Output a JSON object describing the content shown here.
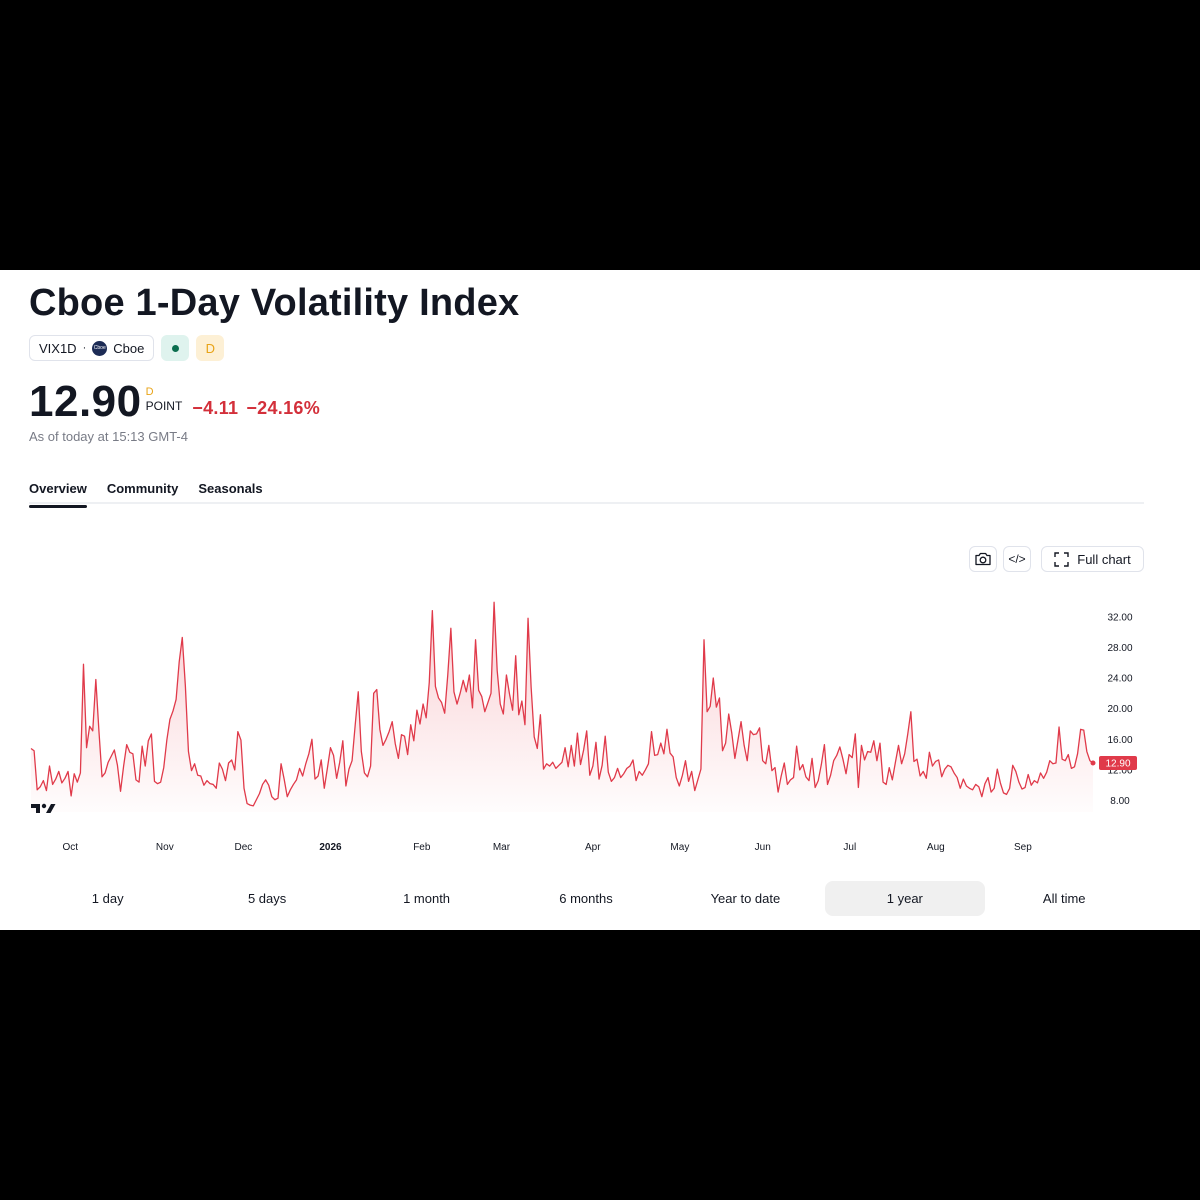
{
  "header": {
    "title": "Cboe 1-Day Volatility Index",
    "symbol": "VIX1D",
    "symbol_separator": "·",
    "exchange": "Cboe",
    "exchange_logo_text": "Cboe",
    "delay_badge": "D"
  },
  "quote": {
    "price": "12.90",
    "price_superscript": "D",
    "unit": "POINT",
    "change": "−4.11",
    "change_percent": "−24.16%",
    "as_of": "As of today at 15:13 GMT-4",
    "change_color": "#d32f3a"
  },
  "tabs": [
    {
      "label": "Overview",
      "active": true
    },
    {
      "label": "Community",
      "active": false
    },
    {
      "label": "Seasonals",
      "active": false
    }
  ],
  "toolbar": {
    "camera_icon": "camera-icon",
    "embed_label": "</>",
    "full_chart_label": "Full chart"
  },
  "ranges": [
    {
      "label": "1 day",
      "active": false
    },
    {
      "label": "5 days",
      "active": false
    },
    {
      "label": "1 month",
      "active": false
    },
    {
      "label": "6 months",
      "active": false
    },
    {
      "label": "Year to date",
      "active": false
    },
    {
      "label": "1 year",
      "active": true
    },
    {
      "label": "All time",
      "active": false
    }
  ],
  "chart_data": {
    "type": "area",
    "title": "",
    "xlabel": "",
    "ylabel": "",
    "line_color": "#e03a4a",
    "last_value_label": "12.90",
    "ylim": [
      6.5,
      35.5
    ],
    "y_ticks": [
      "8.00",
      "12.00",
      "16.00",
      "20.00",
      "24.00",
      "28.00",
      "32.00"
    ],
    "x_ticks": [
      {
        "label": "Oct",
        "t": 0.037
      },
      {
        "label": "Nov",
        "t": 0.126
      },
      {
        "label": "Dec",
        "t": 0.2
      },
      {
        "label": "2026",
        "t": 0.282,
        "bold": true
      },
      {
        "label": "Feb",
        "t": 0.368
      },
      {
        "label": "Mar",
        "t": 0.443
      },
      {
        "label": "Apr",
        "t": 0.529
      },
      {
        "label": "May",
        "t": 0.611
      },
      {
        "label": "Jun",
        "t": 0.689
      },
      {
        "label": "Jul",
        "t": 0.771
      },
      {
        "label": "Aug",
        "t": 0.852
      },
      {
        "label": "Sep",
        "t": 0.934
      }
    ],
    "series": [
      {
        "values": [
          14.8,
          14.5,
          9.4,
          9.8,
          10.6,
          9.3,
          12.5,
          10.1,
          10.8,
          11.8,
          10.3,
          10.9,
          11.8,
          8.6,
          11.5,
          10.4,
          11.6,
          25.8,
          14.9,
          17.7,
          17.1,
          23.8,
          17.1,
          11.1,
          11.6,
          13.0,
          13.8,
          14.6,
          12.6,
          9.2,
          12.5,
          15.3,
          14.3,
          14.1,
          10.7,
          10.4,
          15.1,
          12.5,
          15.8,
          16.7,
          10.5,
          10.2,
          10.4,
          12.3,
          15.9,
          18.6,
          19.7,
          21.2,
          26.1,
          29.3,
          23.0,
          14.4,
          11.9,
          12.8,
          11.3,
          11.2,
          10.0,
          10.6,
          10.2,
          10.1,
          9.6,
          12.9,
          12.1,
          10.6,
          12.9,
          13.3,
          12.0,
          17.0,
          15.9,
          9.6,
          7.6,
          7.4,
          7.3,
          8.1,
          8.9,
          10.1,
          10.7,
          10.0,
          8.5,
          8.1,
          8.3,
          12.8,
          10.8,
          8.5,
          9.4,
          10.1,
          10.7,
          12.2,
          11.2,
          12.8,
          14.1,
          16.0,
          10.8,
          11.2,
          13.3,
          9.6,
          12.2,
          14.9,
          13.9,
          10.9,
          13.0,
          15.8,
          9.9,
          12.1,
          13.2,
          17.8,
          22.2,
          14.4,
          11.6,
          11.1,
          12.5,
          22.0,
          22.5,
          17.3,
          15.2,
          16.0,
          17.0,
          18.3,
          15.4,
          13.5,
          16.6,
          16.4,
          14.0,
          17.9,
          15.8,
          19.8,
          18.0,
          20.6,
          18.8,
          23.4,
          32.8,
          22.9,
          21.4,
          20.8,
          19.4,
          24.4,
          30.5,
          22.2,
          20.6,
          22.0,
          23.7,
          22.2,
          24.4,
          20.1,
          29.0,
          22.4,
          21.6,
          19.6,
          20.8,
          22.0,
          33.9,
          25.0,
          20.6,
          19.3,
          24.4,
          21.9,
          19.8,
          26.9,
          19.2,
          21.0,
          17.9,
          31.8,
          22.8,
          16.3,
          14.8,
          19.2,
          12.1,
          12.8,
          12.5,
          13.0,
          12.2,
          12.6,
          13.0,
          14.9,
          12.4,
          15.2,
          12.5,
          16.8,
          12.7,
          14.6,
          17.1,
          11.3,
          12.5,
          15.6,
          10.8,
          12.6,
          16.4,
          11.7,
          10.5,
          11.0,
          12.2,
          11.0,
          11.5,
          12.2,
          12.5,
          13.3,
          10.6,
          11.8,
          11.3,
          12.0,
          12.8,
          17.0,
          13.9,
          14.0,
          15.5,
          14.1,
          17.3,
          14.2,
          13.7,
          11.0,
          9.9,
          11.3,
          13.2,
          10.5,
          11.8,
          9.3,
          10.7,
          12.1,
          29.0,
          19.6,
          20.3,
          24.0,
          20.2,
          21.4,
          14.5,
          15.5,
          19.3,
          16.8,
          13.5,
          15.9,
          18.3,
          15.2,
          13.2,
          17.1,
          16.6,
          16.7,
          17.5,
          13.2,
          12.8,
          15.2,
          11.9,
          12.3,
          9.1,
          11.2,
          12.9,
          10.1,
          10.7,
          11.0,
          15.1,
          12.0,
          12.7,
          11.1,
          10.6,
          13.5,
          9.7,
          10.6,
          12.7,
          15.3,
          10.1,
          11.3,
          13.2,
          13.9,
          15.0,
          13.4,
          11.5,
          14.0,
          13.6,
          16.7,
          9.7,
          15.2,
          13.3,
          14.4,
          14.3,
          15.8,
          13.2,
          15.5,
          10.4,
          10.1,
          12.3,
          10.7,
          13.0,
          15.2,
          12.8,
          14.1,
          16.7,
          19.6,
          13.1,
          13.4,
          11.2,
          11.8,
          10.9,
          14.3,
          12.5,
          13.1,
          13.3,
          11.1,
          12.1,
          12.6,
          12.4,
          11.6,
          11.0,
          9.6,
          10.8,
          9.9,
          9.6,
          9.4,
          10.1,
          9.8,
          8.5,
          10.2,
          11.0,
          9.1,
          9.6,
          12.1,
          10.3,
          9.0,
          8.8,
          9.6,
          12.6,
          11.8,
          10.4,
          9.5,
          9.7,
          11.4,
          10.0,
          10.6,
          10.3,
          11.6,
          10.9,
          11.7,
          13.2,
          12.8,
          12.9,
          17.6,
          13.4,
          13.2,
          14.0,
          12.2,
          12.4,
          14.1,
          17.3,
          17.2,
          14.4,
          13.2,
          12.9
        ]
      }
    ]
  }
}
